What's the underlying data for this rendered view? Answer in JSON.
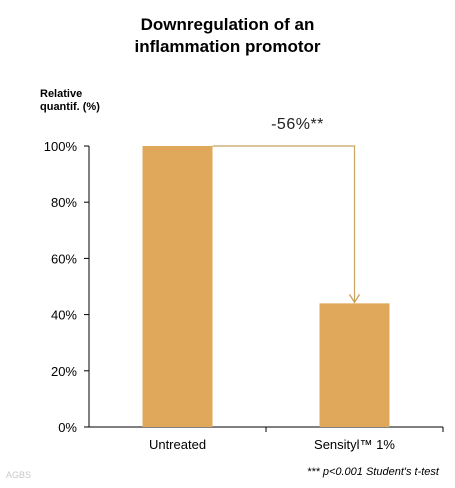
{
  "chart_data": {
    "type": "bar",
    "title": "Downregulation of an inflammation promotor",
    "title_lines": [
      "Downregulation of an",
      "inflammation promotor"
    ],
    "ylabel_lines": [
      "Relative",
      "quantif. (%)"
    ],
    "categories": [
      "Untreated",
      "Sensityl™ 1%"
    ],
    "values": [
      100,
      44
    ],
    "ylim": [
      0,
      100
    ],
    "yticks": [
      0,
      20,
      40,
      60,
      80,
      100
    ],
    "ytick_labels": [
      "0%",
      "20%",
      "40%",
      "60%",
      "80%",
      "100%"
    ],
    "grid": false,
    "annotation": "-56%**",
    "footnote": "*** p<0.001 Student's t-test",
    "bar_color": "#e0a85a",
    "arrow_color": "#c9a462"
  },
  "watermark": "AGBS"
}
